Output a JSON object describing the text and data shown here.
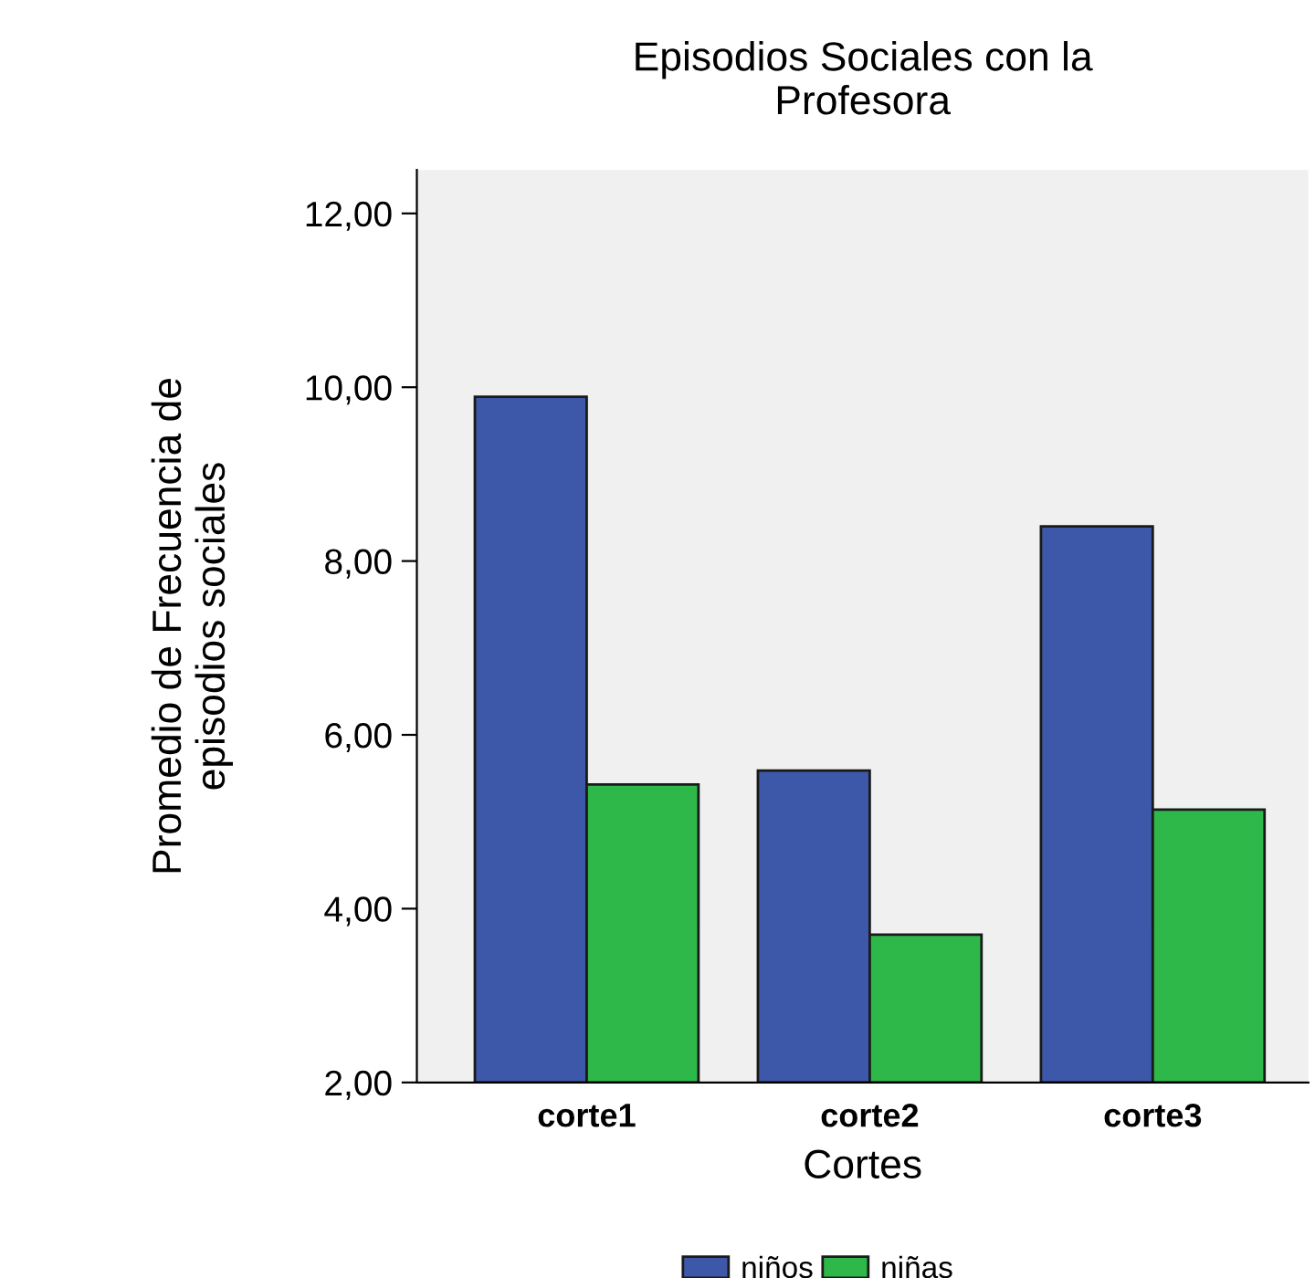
{
  "chart_data": {
    "type": "bar",
    "title": "Episodios Sociales con la\nProfesora",
    "xlabel": "Cortes",
    "ylabel": "Promedio de Frecuencia de\nepisodios sociales",
    "categories": [
      "corte1",
      "corte2",
      "corte3"
    ],
    "series": [
      {
        "name": "niños",
        "color": "#3d58a8",
        "values": [
          9.89,
          5.59,
          8.4
        ]
      },
      {
        "name": "niñas",
        "color": "#2eb84a",
        "values": [
          5.43,
          3.7,
          5.14
        ]
      }
    ],
    "ylim": [
      2,
      12.5
    ],
    "yticks": [
      {
        "value": 2,
        "label": "2,00"
      },
      {
        "value": 4,
        "label": "4,00"
      },
      {
        "value": 6,
        "label": "6,00"
      },
      {
        "value": 8,
        "label": "8,00"
      },
      {
        "value": 10,
        "label": "10,00"
      },
      {
        "value": 12,
        "label": "12,00"
      }
    ],
    "grid": false,
    "legend": "bottom"
  }
}
